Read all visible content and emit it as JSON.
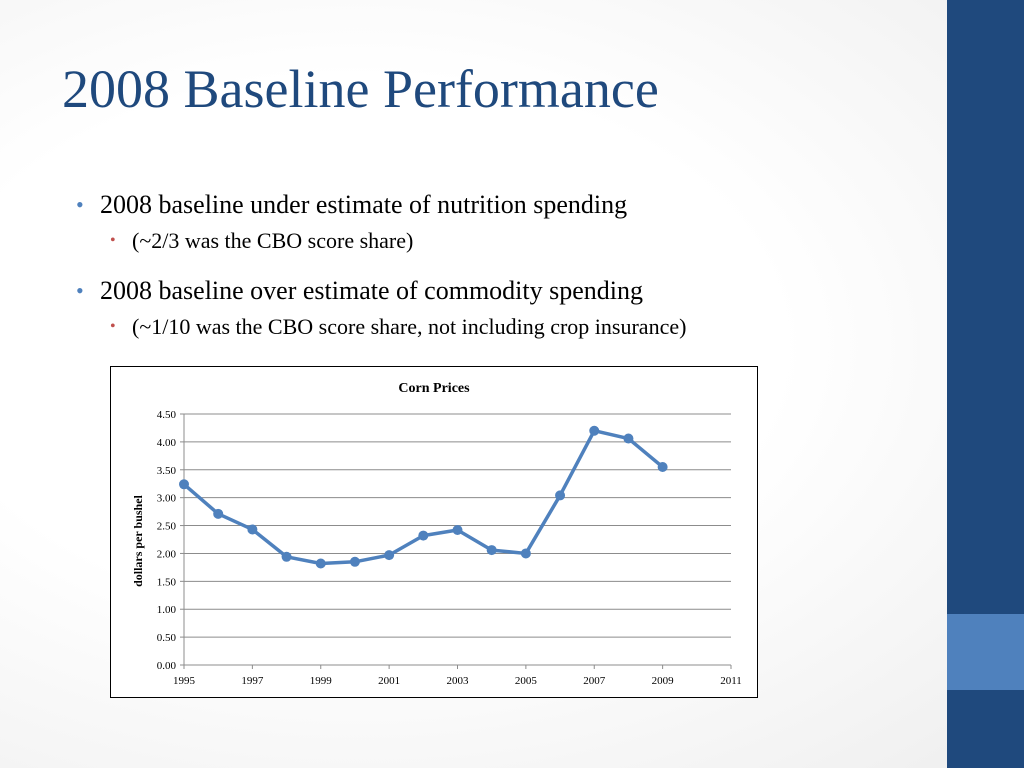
{
  "slide": {
    "title": "2008 Baseline Performance",
    "bullets": [
      {
        "level": 1,
        "text": "2008 baseline under estimate of nutrition spending"
      },
      {
        "level": 2,
        "text": "(~2/3 was the CBO score share)"
      },
      {
        "level": 1,
        "text": "2008 baseline over estimate of commodity spending"
      },
      {
        "level": 2,
        "text": "(~1/10 was the CBO score share, not including crop insurance)"
      }
    ]
  },
  "theme": {
    "title_color": "#1f497d",
    "bar_dark": "#1f497d",
    "bar_light": "#4f81bd",
    "bullet_color": "#4f81bd",
    "sub_bullet_color": "#c0504d",
    "series_color": "#4f81bd"
  },
  "chart_data": {
    "type": "line",
    "title": "Corn Prices",
    "ylabel": "dollars per bushel",
    "xlabel": "",
    "x": [
      1995,
      1996,
      1997,
      1998,
      1999,
      2000,
      2001,
      2002,
      2003,
      2004,
      2005,
      2006,
      2007,
      2008,
      2009
    ],
    "series": [
      {
        "values": [
          3.24,
          2.71,
          2.43,
          1.94,
          1.82,
          1.85,
          1.97,
          2.32,
          2.42,
          2.06,
          2.0,
          3.04,
          4.2,
          4.06,
          3.55
        ]
      }
    ],
    "xlim": [
      1995,
      2011
    ],
    "ylim": [
      0,
      4.5
    ],
    "x_ticks": [
      "1995",
      "1997",
      "1999",
      "2001",
      "2003",
      "2005",
      "2007",
      "2009",
      "2011"
    ],
    "y_ticks": [
      "0.00",
      "0.50",
      "1.00",
      "1.50",
      "2.00",
      "2.50",
      "3.00",
      "3.50",
      "4.00",
      "4.50"
    ],
    "grid": true,
    "legend": "none"
  }
}
